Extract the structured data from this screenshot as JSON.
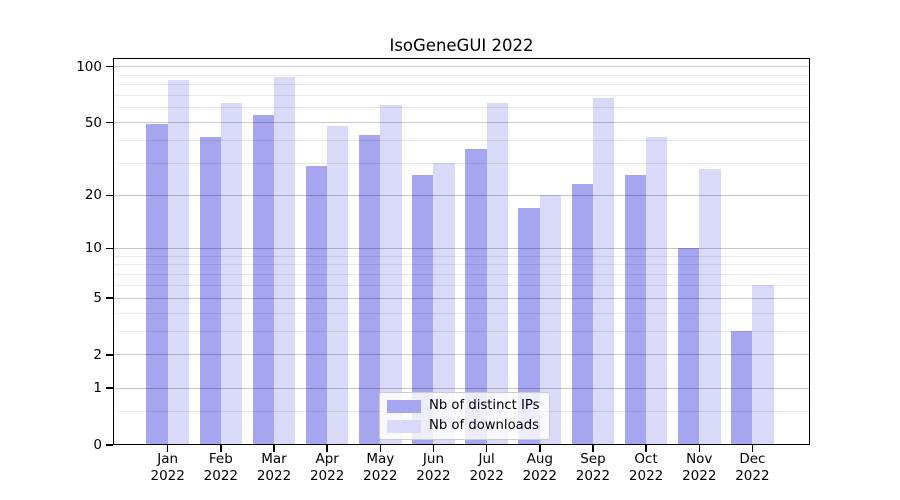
{
  "title": "IsoGeneGUI 2022",
  "chart_data": {
    "type": "bar",
    "title": "IsoGeneGUI 2022",
    "x_categories": [
      "Jan",
      "Feb",
      "Mar",
      "Apr",
      "May",
      "Jun",
      "Jul",
      "Aug",
      "Sep",
      "Oct",
      "Nov",
      "Dec"
    ],
    "x_year_label": "2022",
    "series": [
      {
        "name": "Nb of distinct IPs",
        "color": "#a5a5f0",
        "values": [
          49,
          42,
          55,
          29,
          43,
          26,
          36,
          17,
          23,
          26,
          10,
          3
        ]
      },
      {
        "name": "Nb of downloads",
        "color": "#d9d9f8",
        "values": [
          85,
          64,
          88,
          48,
          62,
          30,
          64,
          20,
          68,
          42,
          28,
          6
        ]
      }
    ],
    "yscale": "log1p",
    "ylim": [
      0,
      112
    ],
    "y_major_ticks": [
      0,
      1,
      2,
      5,
      10,
      20,
      50,
      100
    ],
    "y_minor_gridlines": [
      0.5,
      3,
      4,
      6,
      7,
      8,
      9,
      30,
      40,
      60,
      70,
      80,
      90
    ],
    "grid": true,
    "legend_location": "lower center"
  }
}
